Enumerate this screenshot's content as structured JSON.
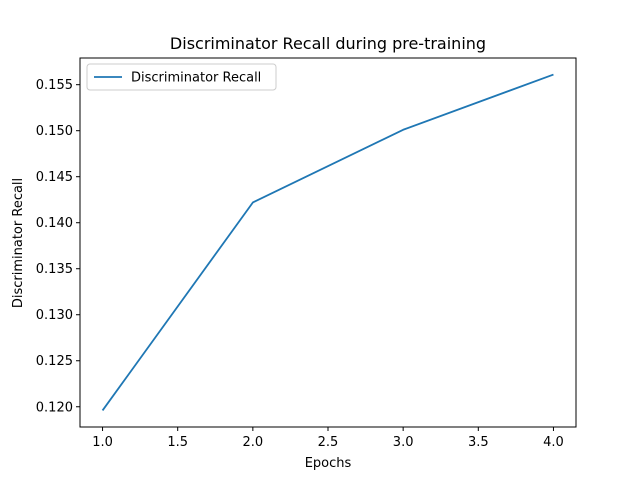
{
  "chart_data": {
    "type": "line",
    "title": "Discriminator Recall during pre-training",
    "xlabel": "Epochs",
    "ylabel": "Discriminator Recall",
    "x": [
      1,
      2,
      3,
      4
    ],
    "series": [
      {
        "name": "Discriminator Recall",
        "color": "#1f77b4",
        "values": [
          0.1196,
          0.1422,
          0.1501,
          0.1561
        ]
      }
    ],
    "xlim": [
      0.85,
      4.15
    ],
    "ylim": [
      0.1178,
      0.1579
    ],
    "xticks": [
      "1.0",
      "1.5",
      "2.0",
      "2.5",
      "3.0",
      "3.5",
      "4.0"
    ],
    "yticks": [
      "0.120",
      "0.125",
      "0.130",
      "0.135",
      "0.140",
      "0.145",
      "0.150",
      "0.155"
    ],
    "grid": false,
    "legend_position": "upper left"
  }
}
